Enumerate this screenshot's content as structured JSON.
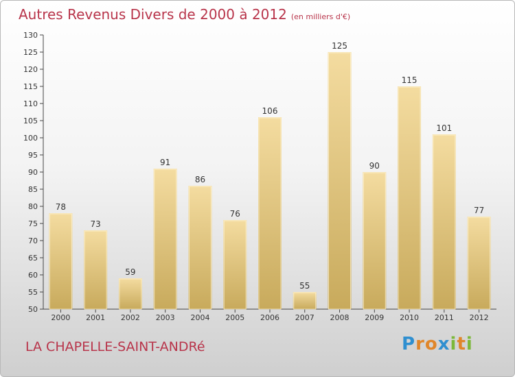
{
  "title": "Autres Revenus Divers de 2000 à 2012",
  "title_unit": "(en milliers d'€)",
  "place": "LA CHAPELLE-SAINT-ANDRé",
  "logo_text": "Proxiti",
  "colors": {
    "title": "#b8344a",
    "bar_top": "#f4dca0",
    "bar_bottom": "#c8aa5c"
  },
  "chart_data": {
    "type": "bar",
    "categories": [
      "2000",
      "2001",
      "2002",
      "2003",
      "2004",
      "2005",
      "2006",
      "2007",
      "2008",
      "2009",
      "2010",
      "2011",
      "2012"
    ],
    "values": [
      78,
      73,
      59,
      91,
      86,
      76,
      106,
      55,
      125,
      90,
      115,
      101,
      77
    ],
    "ylim": [
      50,
      130
    ],
    "yticks": [
      50,
      55,
      60,
      65,
      70,
      75,
      80,
      85,
      90,
      95,
      100,
      105,
      110,
      115,
      120,
      125,
      130
    ],
    "grid": false
  }
}
